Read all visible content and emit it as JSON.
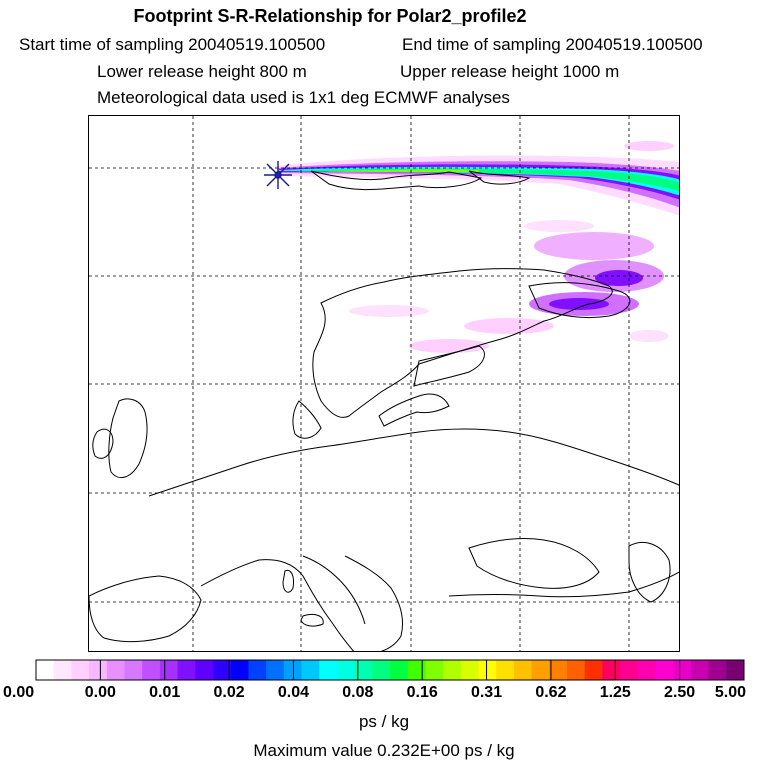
{
  "header": {
    "title": "Footprint S-R-Relationship for Polar2_profile2",
    "start_time": "Start time of sampling 20040519.100500",
    "end_time": "End time of sampling 20040519.100500",
    "lower_height": "Lower release height  800 m",
    "upper_height": "Upper release height 1000 m",
    "met_data": "Meteorological data used is 1x1 deg ECMWF analyses"
  },
  "legend": {
    "ticks": [
      "0.00",
      "0.00",
      "0.01",
      "0.02",
      "0.04",
      "0.08",
      "0.16",
      "0.31",
      "0.62",
      "1.25",
      "2.50",
      "5.00"
    ],
    "colors": [
      "#ffffff",
      "#ffe8ff",
      "#ffd0ff",
      "#f8b8ff",
      "#e890ff",
      "#d878ff",
      "#c050ff",
      "#a830ff",
      "#8010ff",
      "#6000ff",
      "#3000ff",
      "#0000ff",
      "#0040ff",
      "#0070ff",
      "#00a0ff",
      "#00c8ff",
      "#00ffff",
      "#00ffe0",
      "#00ffb0",
      "#00ff80",
      "#00ff40",
      "#40ff00",
      "#80ff00",
      "#b0ff00",
      "#d8ff00",
      "#ffff00",
      "#ffe000",
      "#ffc000",
      "#ffa000",
      "#ff8000",
      "#ff6000",
      "#ff3000",
      "#ff0060",
      "#ff0090",
      "#ff00b0",
      "#ff00d0",
      "#e800c8",
      "#c800b0",
      "#a00090",
      "#780070"
    ],
    "units": "ps / kg",
    "max_value": "Maximum value  0.232E+00 ps / kg"
  },
  "map": {
    "receptor_marker": "star-marker",
    "plume_colors": [
      "#ffe8ff",
      "#f0b0ff",
      "#d070ff",
      "#8010ff",
      "#00ffff",
      "#00ff80",
      "#40ff00"
    ]
  }
}
